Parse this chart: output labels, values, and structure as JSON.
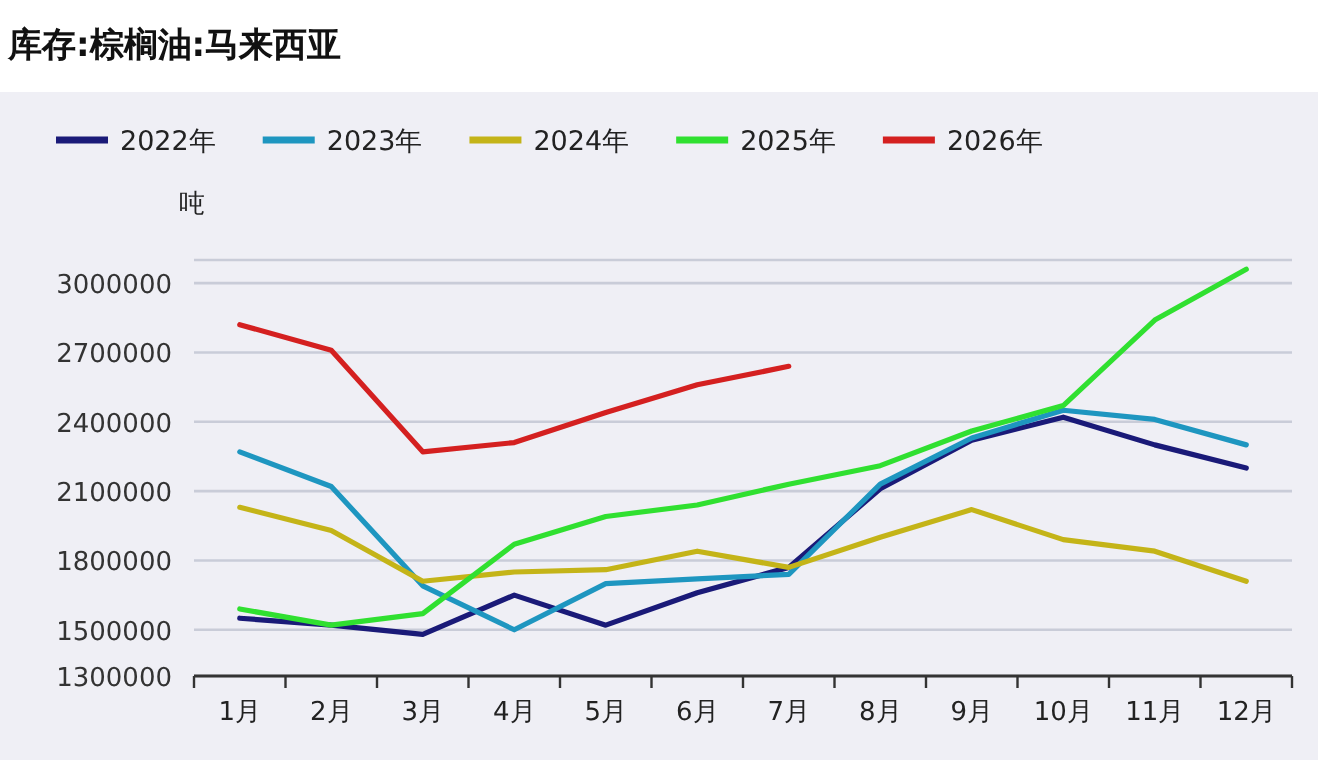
{
  "chart_data": {
    "type": "line",
    "title": "库存:棕榈油:马来西亚",
    "ylabel": "吨",
    "categories": [
      "1月",
      "2月",
      "3月",
      "4月",
      "5月",
      "6月",
      "7月",
      "8月",
      "9月",
      "10月",
      "11月",
      "12月"
    ],
    "series": [
      {
        "name": "2022年",
        "color": "#1a1a78",
        "values": [
          1550000,
          1520000,
          1480000,
          1650000,
          1520000,
          1660000,
          1770000,
          2110000,
          2320000,
          2420000,
          2300000,
          2200000
        ]
      },
      {
        "name": "2023年",
        "color": "#1e96c0",
        "values": [
          2270000,
          2120000,
          1690000,
          1500000,
          1700000,
          1720000,
          1740000,
          2130000,
          2330000,
          2450000,
          2410000,
          2300000
        ]
      },
      {
        "name": "2024年",
        "color": "#c4b418",
        "values": [
          2030000,
          1930000,
          1710000,
          1750000,
          1760000,
          1840000,
          1770000,
          1900000,
          2020000,
          1890000,
          1840000,
          1710000
        ]
      },
      {
        "name": "2025年",
        "color": "#30e030",
        "values": [
          1590000,
          1520000,
          1570000,
          1870000,
          1990000,
          2040000,
          2130000,
          2210000,
          2360000,
          2470000,
          2840000,
          3060000
        ]
      },
      {
        "name": "2026年",
        "color": "#d42020",
        "values": [
          2820000,
          2710000,
          2270000,
          2310000,
          2440000,
          2560000,
          2640000,
          null,
          null,
          null,
          null,
          null
        ]
      }
    ],
    "ylim": [
      1300000,
      3100000
    ],
    "yticks": [
      1300000,
      1500000,
      1800000,
      2100000,
      2400000,
      2700000,
      3000000,
      {
        "value": 3100000,
        "label": null
      }
    ],
    "grid": "y",
    "legend": "top left"
  }
}
